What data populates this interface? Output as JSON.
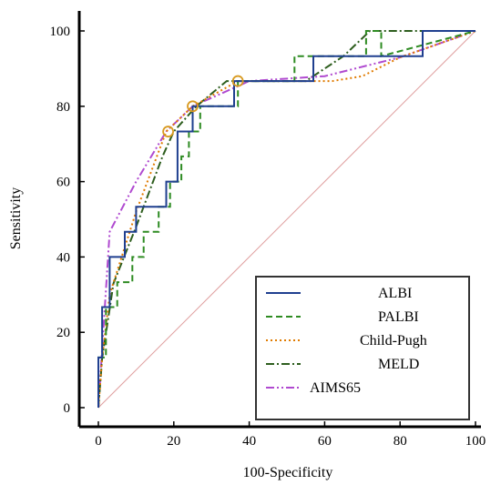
{
  "chart_data": {
    "type": "line",
    "title": "",
    "xlabel": "100-Specificity",
    "ylabel": "Sensitivity",
    "xlim": [
      0,
      100
    ],
    "ylim": [
      0,
      100
    ],
    "x_ticks": [
      "0",
      "20",
      "40",
      "60",
      "80",
      "100"
    ],
    "y_ticks": [
      "0",
      "20",
      "40",
      "60",
      "80",
      "100"
    ],
    "grid": false,
    "legend_position": "bottom-right",
    "reference_line": {
      "x": [
        0,
        100
      ],
      "y": [
        0,
        100
      ],
      "color": "#e0a0a0"
    },
    "series": [
      {
        "name": "ALBI",
        "color": "#1f3f8f",
        "dash": "",
        "step": true,
        "points": [
          [
            0,
            0
          ],
          [
            0,
            13.3
          ],
          [
            1,
            13.3
          ],
          [
            1,
            26.7
          ],
          [
            3,
            26.7
          ],
          [
            3,
            40
          ],
          [
            7,
            40
          ],
          [
            7,
            46.7
          ],
          [
            10,
            46.7
          ],
          [
            10,
            53.3
          ],
          [
            18,
            53.3
          ],
          [
            18,
            60
          ],
          [
            21,
            60
          ],
          [
            21,
            73.3
          ],
          [
            25,
            73.3
          ],
          [
            25,
            80
          ],
          [
            36,
            80
          ],
          [
            36,
            86.7
          ],
          [
            57,
            86.7
          ],
          [
            57,
            93.3
          ],
          [
            86,
            93.3
          ],
          [
            86,
            100
          ],
          [
            100,
            100
          ]
        ]
      },
      {
        "name": "PALBI",
        "color": "#2e8b22",
        "dash": "7,4",
        "step": true,
        "points": [
          [
            0,
            0
          ],
          [
            0,
            13.3
          ],
          [
            2,
            13.3
          ],
          [
            2,
            26.7
          ],
          [
            5,
            26.7
          ],
          [
            5,
            33.3
          ],
          [
            9,
            33.3
          ],
          [
            9,
            40
          ],
          [
            12,
            40
          ],
          [
            12,
            46.7
          ],
          [
            16,
            46.7
          ],
          [
            16,
            53.3
          ],
          [
            19,
            53.3
          ],
          [
            19,
            60
          ],
          [
            22,
            60
          ],
          [
            22,
            66.7
          ],
          [
            24,
            66.7
          ],
          [
            24,
            73.3
          ],
          [
            27,
            73.3
          ],
          [
            27,
            80
          ],
          [
            37,
            80
          ],
          [
            37,
            86.7
          ],
          [
            52,
            86.7
          ],
          [
            52,
            93.3
          ],
          [
            71,
            93.3
          ],
          [
            71,
            100
          ],
          [
            75,
            100
          ],
          [
            75,
            93.3
          ],
          [
            100,
            100
          ]
        ]
      },
      {
        "name": "Child-Pugh",
        "color": "#e07b00",
        "dash": "2,3",
        "step": false,
        "points": [
          [
            0,
            0
          ],
          [
            1,
            13
          ],
          [
            3,
            30
          ],
          [
            10,
            52
          ],
          [
            18,
            73.3
          ],
          [
            25,
            80
          ],
          [
            37,
            86.7
          ],
          [
            62,
            86.7
          ],
          [
            70,
            88
          ],
          [
            80,
            93
          ],
          [
            100,
            100
          ]
        ]
      },
      {
        "name": "MELD",
        "color": "#2e5e1e",
        "dash": "9,3,2,3",
        "step": false,
        "points": [
          [
            0,
            0
          ],
          [
            1,
            13
          ],
          [
            4,
            33
          ],
          [
            10,
            48
          ],
          [
            17,
            66.7
          ],
          [
            20,
            73.3
          ],
          [
            26,
            80
          ],
          [
            34,
            86.7
          ],
          [
            55,
            86.7
          ],
          [
            65,
            93.3
          ],
          [
            72,
            100
          ],
          [
            100,
            100
          ]
        ]
      },
      {
        "name": "AIMS65",
        "color": "#b04ad0",
        "dash": "9,3,2,3,2,3",
        "step": false,
        "points": [
          [
            0,
            0
          ],
          [
            3,
            46.7
          ],
          [
            10,
            60
          ],
          [
            18,
            73.3
          ],
          [
            25,
            80
          ],
          [
            40,
            86.7
          ],
          [
            60,
            88
          ],
          [
            80,
            93
          ],
          [
            100,
            100
          ]
        ]
      }
    ],
    "optimal_points": [
      {
        "x": 18.5,
        "y": 73.3
      },
      {
        "x": 25,
        "y": 80
      },
      {
        "x": 37,
        "y": 86.7
      }
    ]
  }
}
